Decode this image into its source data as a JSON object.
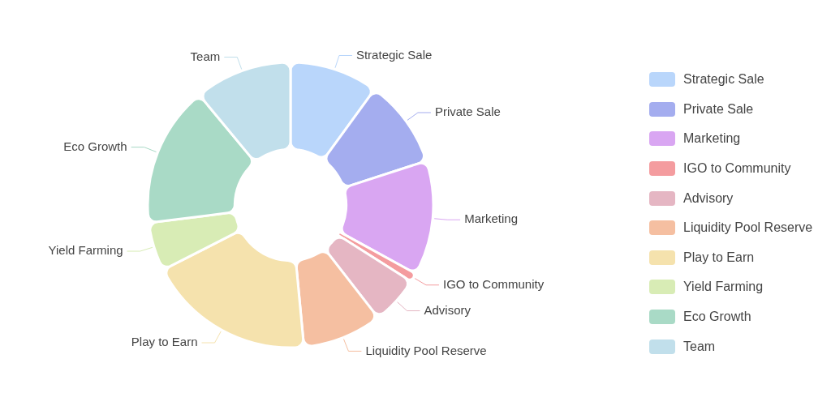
{
  "chart_data": {
    "type": "donut",
    "categories": [
      "Strategic Sale",
      "Private Sale",
      "Marketing",
      "IGO to Community",
      "Advisory",
      "Liquidity Pool Reserve",
      "Play to Earn",
      "Yield Farming",
      "Eco Growth",
      "Team"
    ],
    "values": [
      10,
      10,
      13,
      1,
      5.5,
      9,
      19,
      5.5,
      16,
      11
    ],
    "colors": [
      "#b9d6fb",
      "#a4adef",
      "#d9a6f2",
      "#f49c9f",
      "#e5b6c3",
      "#f5bfa1",
      "#f5e2ad",
      "#d8ecb5",
      "#a9dac6",
      "#c1dfeb"
    ],
    "legend": "right"
  }
}
